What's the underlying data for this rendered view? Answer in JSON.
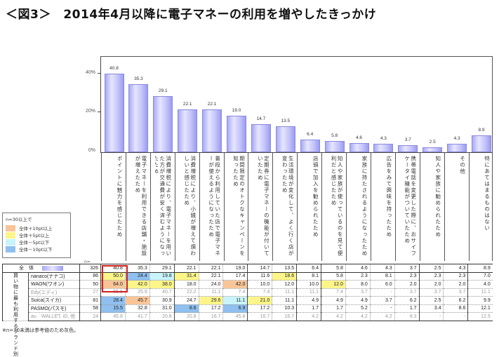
{
  "title": "＜図3＞　2014年4月以降に電子マネーの利用を増やしたきっかけ",
  "yaxis": {
    "ticks": [
      "40%",
      "20%",
      "0%"
    ]
  },
  "legend": {
    "header": "n=30以上で",
    "items": [
      {
        "label": "全体＋10pt以上",
        "color": "#f9c597"
      },
      {
        "label": "全体＋5pt以上",
        "color": "#fdf58a"
      },
      {
        "label": "全体－5pt以下",
        "color": "#c9f4fb"
      },
      {
        "label": "全体－10pt以下",
        "color": "#8fc0f0"
      }
    ]
  },
  "table": {
    "n_header": "n=",
    "total_label": "全　体",
    "group_label": "買い物に最も利用するブランド別",
    "rows": [
      {
        "name": "全体",
        "n": "326",
        "values": [
          "40.8",
          "35.3",
          "29.1",
          "22.1",
          "22.1",
          "19.0",
          "14.7",
          "13.5",
          "6.4",
          "5.8",
          "4.6",
          "4.3",
          "3.7",
          "2.5",
          "4.3",
          "8.9"
        ]
      },
      {
        "name": "nanaco(ナナコ)",
        "n": "86",
        "values": [
          "50.0",
          "24.4",
          "19.8",
          "31.4",
          "22.1",
          "17.4",
          "11.6",
          "18.6",
          "8.1",
          "5.8",
          "2.3",
          "8.1",
          "2.3",
          "2.3",
          "2.3",
          "7.0"
        ]
      },
      {
        "name": "WAON(ワオン)",
        "n": "50",
        "values": [
          "64.0",
          "42.0",
          "38.0",
          "18.0",
          "24.0",
          "42.0",
          "10.0",
          "12.0",
          "10.0",
          "12.0",
          "8.0",
          "6.0",
          "2.0",
          "2.0",
          "2.0",
          "4.0"
        ]
      },
      {
        "name": "Edy(エディ)",
        "n": "27",
        "values": [
          "55.6",
          "25.9",
          "40.7",
          "22.2",
          "11.1",
          "7.4",
          "7.4",
          "11.1",
          "11.1",
          "7.4",
          "3.7",
          "-",
          "3.7",
          "3.7",
          "3.7",
          "11.1"
        ]
      },
      {
        "name": "Suica(スイカ)",
        "n": "81",
        "values": [
          "28.4",
          "45.7",
          "30.9",
          "24.7",
          "29.6",
          "11.1",
          "21.0",
          "11.1",
          "4.9",
          "4.9",
          "4.9",
          "3.7",
          "6.2",
          "2.5",
          "6.2",
          "9.9"
        ]
      },
      {
        "name": "PASMO(パスモ)",
        "n": "58",
        "values": [
          "15.5",
          "32.8",
          "31.0",
          "8.6",
          "17.2",
          "6.9",
          "17.2",
          "10.3",
          "1.7",
          "1.7",
          "5.2",
          "-",
          "1.7",
          "3.4",
          "8.6",
          "12.1"
        ]
      },
      {
        "name": "au　WALLET, iD, 他",
        "n": "24",
        "values": [
          "45.8",
          "41.7",
          "20.8",
          "20.8",
          "16.7",
          "45.8",
          "16.7",
          "16.7",
          "4.2",
          "4.2",
          "4.2",
          "4.2",
          "8.3",
          "-",
          "-",
          "12.5"
        ]
      }
    ]
  },
  "footnote": "※n=30未満は参考値のため灰色。",
  "chart_data": {
    "type": "bar",
    "title": "2014年4月以降に電子マネーの利用を増やしたきっかけ",
    "xlabel": "",
    "ylabel": "",
    "ylim": [
      0,
      45
    ],
    "yticks": [
      "0%",
      "20%",
      "40%"
    ],
    "grid": false,
    "categories": [
      "ポイントに魅力を感じたため",
      "電子マネーを利用できる店舗・施設が増えたため",
      "消費増税により、電子マネーを用いた方が交通費が安く済むようになったため",
      "消費増税により、小銭が増えて煩わしいと感じたため",
      "普段から利用していた店で電子マネーが使えるようになったため",
      "期間限定のオトクなキャンペーンを知ったため",
      "定期券に電子マネーの機能が付いていたため",
      "生活環境が変化して、よく行く店が変わったため",
      "店頭で加入を勧められたため",
      "知人や家族が使っているのを見て便利だと感じたため",
      "家族に持たされるようになったため",
      "広告をみて興味を持ったため",
      "携帯電話を変更した際に、おサイフケータイ機能がついていたため",
      "知人や家族に勧められたため",
      "その他",
      "特にあてはまるものはない"
    ],
    "values": [
      40.8,
      35.3,
      29.1,
      22.1,
      22.1,
      19.0,
      14.7,
      13.5,
      6.4,
      5.8,
      4.6,
      4.3,
      3.7,
      2.5,
      4.3,
      8.9
    ],
    "n": 326,
    "table_series": [
      {
        "name": "nanaco(ナナコ)",
        "n": 86,
        "values": [
          50.0,
          24.4,
          19.8,
          31.4,
          22.1,
          17.4,
          11.6,
          18.6,
          8.1,
          5.8,
          2.3,
          8.1,
          2.3,
          2.3,
          2.3,
          7.0
        ]
      },
      {
        "name": "WAON(ワオン)",
        "n": 50,
        "values": [
          64.0,
          42.0,
          38.0,
          18.0,
          24.0,
          42.0,
          10.0,
          12.0,
          10.0,
          12.0,
          8.0,
          6.0,
          2.0,
          2.0,
          2.0,
          4.0
        ]
      },
      {
        "name": "Edy(エディ)",
        "n": 27,
        "values": [
          55.6,
          25.9,
          40.7,
          22.2,
          11.1,
          7.4,
          7.4,
          11.1,
          11.1,
          7.4,
          3.7,
          null,
          3.7,
          3.7,
          3.7,
          11.1
        ]
      },
      {
        "name": "Suica(スイカ)",
        "n": 81,
        "values": [
          28.4,
          45.7,
          30.9,
          24.7,
          29.6,
          11.1,
          21.0,
          11.1,
          4.9,
          4.9,
          4.9,
          3.7,
          6.2,
          2.5,
          6.2,
          9.9
        ]
      },
      {
        "name": "PASMO(パスモ)",
        "n": 58,
        "values": [
          15.5,
          32.8,
          31.0,
          8.6,
          17.2,
          6.9,
          17.2,
          10.3,
          1.7,
          1.7,
          5.2,
          null,
          1.7,
          3.4,
          8.6,
          12.1
        ]
      },
      {
        "name": "au WALLET, iD, 他",
        "n": 24,
        "values": [
          45.8,
          41.7,
          20.8,
          20.8,
          16.7,
          45.8,
          16.7,
          16.7,
          4.2,
          4.2,
          4.2,
          4.2,
          8.3,
          null,
          null,
          12.5
        ]
      }
    ],
    "legend": [
      "全体＋10pt以上",
      "全体＋5pt以上",
      "全体－5pt以下",
      "全体－10pt以下"
    ],
    "annotations": [
      "n=30以上で",
      "※n=30未満は参考値のため灰色。"
    ]
  }
}
